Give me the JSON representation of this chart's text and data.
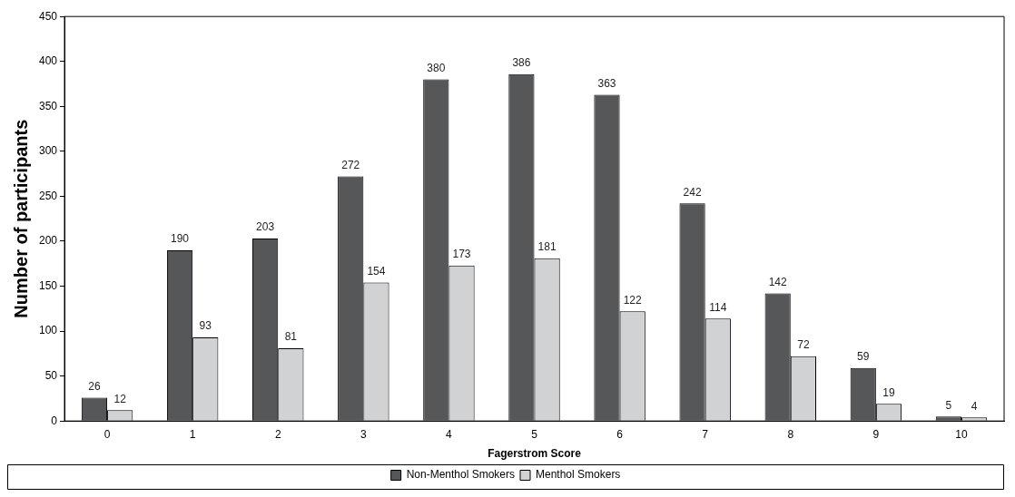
{
  "chart_data": {
    "type": "bar",
    "xlabel": "Fagerstrom Score",
    "ylabel": "Number of participants",
    "categories": [
      "0",
      "1",
      "2",
      "3",
      "4",
      "5",
      "6",
      "7",
      "8",
      "9",
      "10"
    ],
    "series": [
      {
        "name": "Non-Menthol Smokers",
        "color": "#555759",
        "values": [
          26,
          190,
          203,
          272,
          380,
          386,
          363,
          242,
          142,
          59,
          5
        ]
      },
      {
        "name": "Menthol Smokers",
        "color": "#d1d2d4",
        "values": [
          12,
          93,
          81,
          154,
          173,
          181,
          122,
          114,
          72,
          19,
          4
        ]
      }
    ],
    "ylim": [
      0,
      450
    ],
    "yticks": [
      0,
      50,
      100,
      150,
      200,
      250,
      300,
      350,
      400,
      450
    ],
    "grid": false,
    "legend": "bottom",
    "data_labels": true
  }
}
